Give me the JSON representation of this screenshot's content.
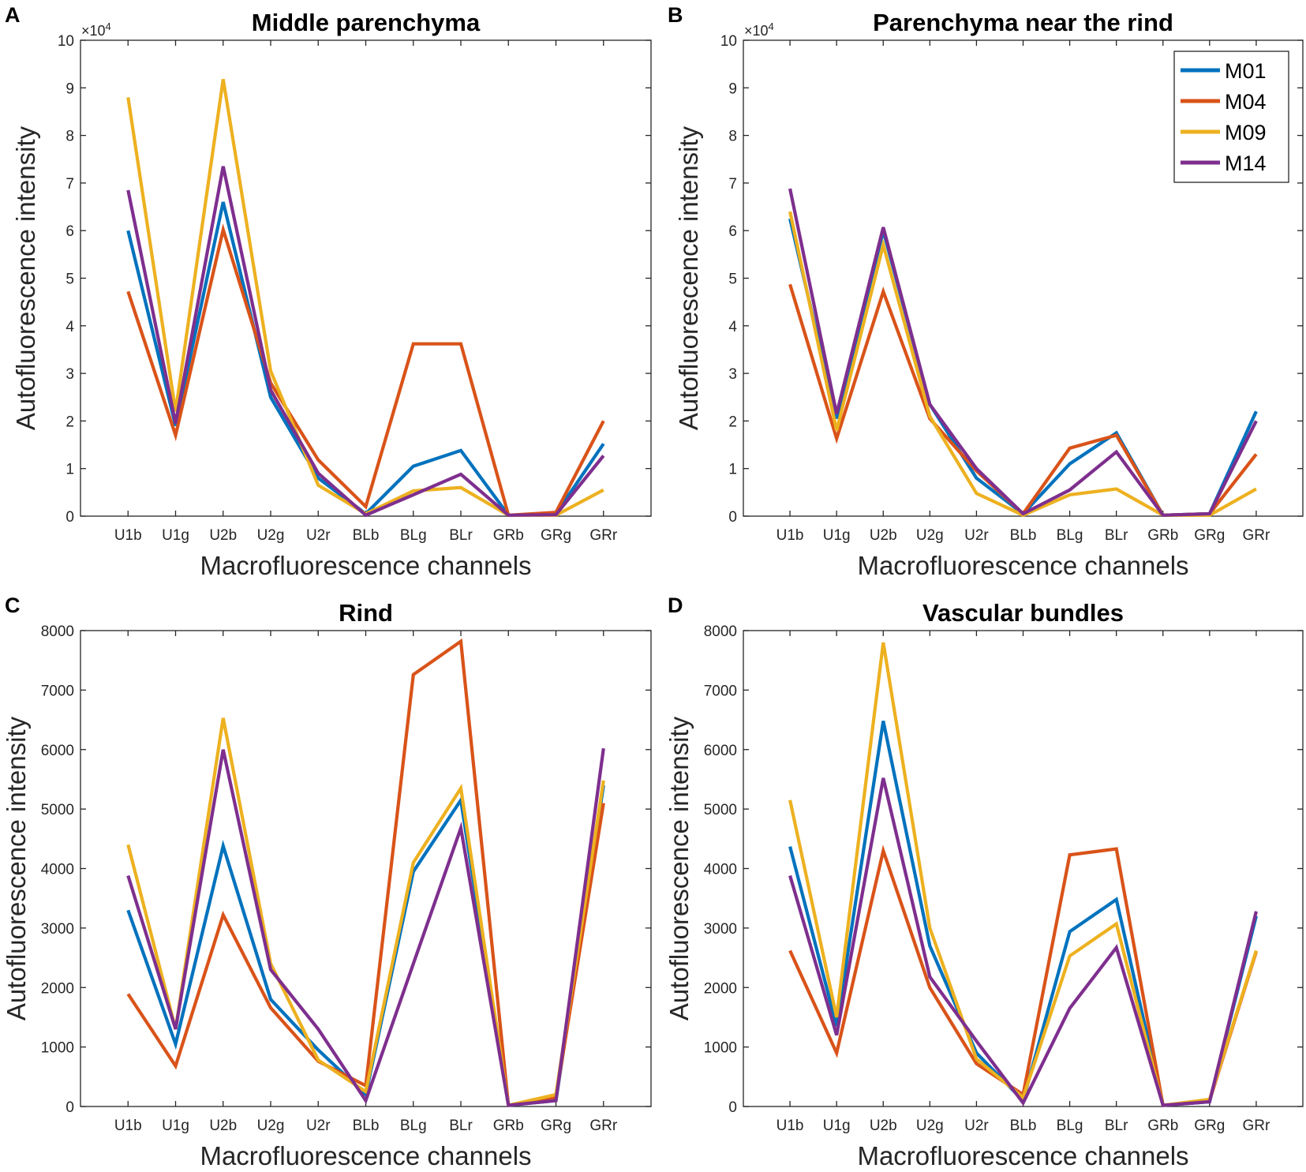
{
  "colors": {
    "M01": "#0072BD",
    "M04": "#D95319",
    "M09": "#EDB120",
    "M14": "#7E2F8E"
  },
  "chart_data": [
    {
      "panel": "A",
      "type": "line",
      "title": "Middle parenchyma",
      "xlabel": "Macrofluorescence channels",
      "ylabel": "Autofluorescence intensity",
      "y_multiplier": "×10",
      "y_exponent": "4",
      "categories": [
        "U1b",
        "U1g",
        "U2b",
        "U2g",
        "U2r",
        "BLb",
        "BLg",
        "BLr",
        "GRb",
        "GRg",
        "GRr"
      ],
      "ylim": [
        0,
        10
      ],
      "yticks": [
        "0",
        "1",
        "2",
        "3",
        "4",
        "5",
        "6",
        "7",
        "8",
        "9",
        "10"
      ],
      "legend": false,
      "series": [
        {
          "name": "M01",
          "values": [
            6.0,
            1.9,
            6.6,
            2.5,
            0.8,
            0.05,
            1.05,
            1.38,
            0.02,
            0.05,
            1.52
          ]
        },
        {
          "name": "M04",
          "values": [
            4.72,
            1.7,
            6.02,
            2.8,
            1.18,
            0.2,
            3.62,
            3.62,
            0.02,
            0.08,
            2.0
          ]
        },
        {
          "name": "M09",
          "values": [
            8.8,
            2.2,
            9.18,
            3.05,
            0.65,
            0.05,
            0.53,
            0.6,
            0.02,
            0.02,
            0.55
          ]
        },
        {
          "name": "M14",
          "values": [
            6.85,
            1.95,
            7.35,
            2.65,
            0.9,
            0.02,
            0.45,
            0.88,
            0.02,
            0.03,
            1.27
          ]
        }
      ]
    },
    {
      "panel": "B",
      "type": "line",
      "title": "Parenchyma near the rind",
      "xlabel": "Macrofluorescence channels",
      "ylabel": "Autofluorescence intensity",
      "y_multiplier": "×10",
      "y_exponent": "4",
      "categories": [
        "U1b",
        "U1g",
        "U2b",
        "U2g",
        "U2r",
        "BLb",
        "BLg",
        "BLr",
        "GRb",
        "GRg",
        "GRr"
      ],
      "ylim": [
        0,
        10
      ],
      "yticks": [
        "0",
        "1",
        "2",
        "3",
        "4",
        "5",
        "6",
        "7",
        "8",
        "9",
        "10"
      ],
      "legend": "top-right",
      "series": [
        {
          "name": "M01",
          "values": [
            6.25,
            2.05,
            6.0,
            2.35,
            0.8,
            0.05,
            1.1,
            1.75,
            0.02,
            0.05,
            2.2
          ]
        },
        {
          "name": "M04",
          "values": [
            4.87,
            1.63,
            4.72,
            2.05,
            0.95,
            0.05,
            1.43,
            1.7,
            0.02,
            0.05,
            1.3
          ]
        },
        {
          "name": "M09",
          "values": [
            6.4,
            1.8,
            5.7,
            2.1,
            0.48,
            0.02,
            0.45,
            0.57,
            0.02,
            0.02,
            0.57
          ]
        },
        {
          "name": "M14",
          "values": [
            6.88,
            2.15,
            6.07,
            2.35,
            1.0,
            0.05,
            0.55,
            1.35,
            0.02,
            0.05,
            2.0
          ]
        }
      ]
    },
    {
      "panel": "C",
      "type": "line",
      "title": "Rind",
      "xlabel": "Macrofluorescence channels",
      "ylabel": "Autofluorescence intensity",
      "categories": [
        "U1b",
        "U1g",
        "U2b",
        "U2g",
        "U2r",
        "BLb",
        "BLg",
        "BLr",
        "GRb",
        "GRg",
        "GRr"
      ],
      "ylim": [
        0,
        8000
      ],
      "yticks": [
        "0",
        "1000",
        "2000",
        "3000",
        "4000",
        "5000",
        "6000",
        "7000",
        "8000"
      ],
      "legend": false,
      "series": [
        {
          "name": "M01",
          "values": [
            3300,
            1050,
            4380,
            1800,
            950,
            200,
            3950,
            5150,
            20,
            100,
            5400
          ]
        },
        {
          "name": "M04",
          "values": [
            1890,
            680,
            3220,
            1660,
            760,
            350,
            7260,
            7820,
            20,
            150,
            5100
          ]
        },
        {
          "name": "M09",
          "values": [
            4400,
            1300,
            6530,
            2400,
            780,
            250,
            4100,
            5350,
            20,
            200,
            5480
          ]
        },
        {
          "name": "M14",
          "values": [
            3880,
            1300,
            6000,
            2300,
            1300,
            100,
            2400,
            4680,
            20,
            100,
            6020
          ]
        }
      ]
    },
    {
      "panel": "D",
      "type": "line",
      "title": "Vascular bundles",
      "xlabel": "Macrofluorescence channels",
      "ylabel": "Autofluorescence intensity",
      "categories": [
        "U1b",
        "U1g",
        "U2b",
        "U2g",
        "U2r",
        "BLb",
        "BLg",
        "BLr",
        "GRb",
        "GRg",
        "GRr"
      ],
      "ylim": [
        0,
        8000
      ],
      "yticks": [
        "0",
        "1000",
        "2000",
        "3000",
        "4000",
        "5000",
        "6000",
        "7000",
        "8000"
      ],
      "legend": false,
      "series": [
        {
          "name": "M01",
          "values": [
            4370,
            1350,
            6480,
            2700,
            900,
            100,
            2940,
            3480,
            20,
            80,
            3200
          ]
        },
        {
          "name": "M04",
          "values": [
            2620,
            900,
            4300,
            2000,
            720,
            200,
            4230,
            4330,
            20,
            100,
            2600
          ]
        },
        {
          "name": "M09",
          "values": [
            5150,
            1500,
            7800,
            3000,
            800,
            150,
            2530,
            3070,
            20,
            120,
            2620
          ]
        },
        {
          "name": "M14",
          "values": [
            3880,
            1200,
            5520,
            2180,
            1100,
            60,
            1650,
            2670,
            20,
            80,
            3280
          ]
        }
      ]
    }
  ]
}
